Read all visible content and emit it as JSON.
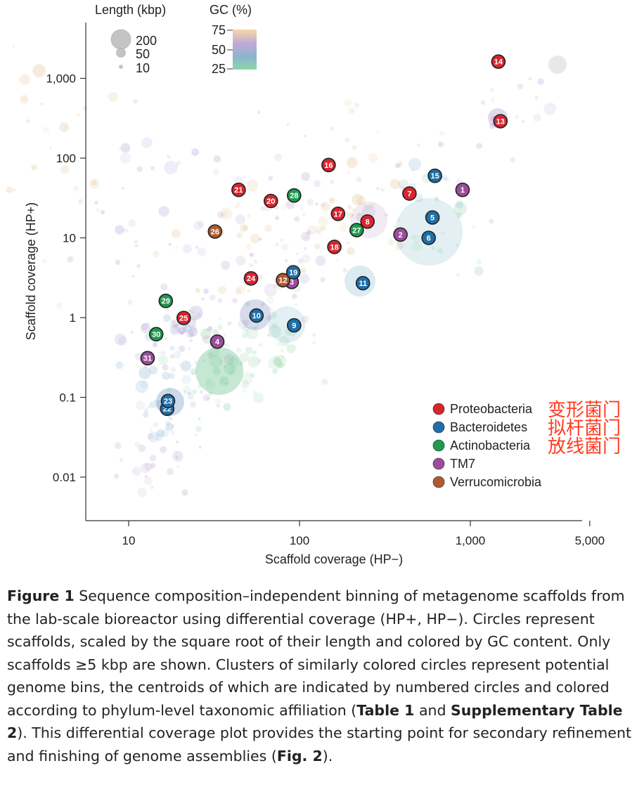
{
  "chart_data": {
    "type": "scatter",
    "xlabel": "Scaffold coverage (HP−)",
    "ylabel": "Scaffold coverage (HP+)",
    "x_scale": "log",
    "y_scale": "log",
    "xlim": [
      5,
      5000
    ],
    "ylim": [
      0.004,
      4000
    ],
    "x_ticks": [
      {
        "value": 10,
        "label": "10"
      },
      {
        "value": 100,
        "label": "100"
      },
      {
        "value": 1000,
        "label": "1,000"
      },
      {
        "value": 5000,
        "label": "5,000"
      }
    ],
    "y_ticks": [
      {
        "value": 0.01,
        "label": "0.01"
      },
      {
        "value": 0.1,
        "label": "0.1"
      },
      {
        "value": 1,
        "label": "1"
      },
      {
        "value": 10,
        "label": "10"
      },
      {
        "value": 100,
        "label": "100"
      },
      {
        "value": 1000,
        "label": "1,000"
      }
    ],
    "size_legend": {
      "title": "Length (kbp)",
      "entries": [
        {
          "value": 200,
          "label": "200"
        },
        {
          "value": 50,
          "label": "50"
        },
        {
          "value": 10,
          "label": "10"
        }
      ]
    },
    "gc_legend": {
      "title": "GC (%)",
      "ticks": [
        {
          "value": 75,
          "label": "75"
        },
        {
          "value": 50,
          "label": "50"
        },
        {
          "value": 25,
          "label": "25"
        }
      ],
      "colors": [
        "#f6d8a4",
        "#bfaad6",
        "#8ab5cf",
        "#8fd6a4"
      ]
    },
    "phyla": [
      {
        "key": "Proteobacteria",
        "label": "Proteobacteria",
        "color": "#d8262e",
        "note": "变形菌门"
      },
      {
        "key": "Bacteroidetes",
        "label": "Bacteroidetes",
        "color": "#1f6fa8",
        "note": "拟杆菌门"
      },
      {
        "key": "Actinobacteria",
        "label": "Actinobacteria",
        "color": "#1f9a4e",
        "note": "放线菌门"
      },
      {
        "key": "TM7",
        "label": "TM7",
        "color": "#9b4d9b",
        "note": ""
      },
      {
        "key": "Verrucomicrobia",
        "label": "Verrucomicrobia",
        "color": "#b05a2e",
        "note": ""
      }
    ],
    "centroids": [
      {
        "id": "1",
        "x": 900,
        "y": 40,
        "phylum": "TM7"
      },
      {
        "id": "2",
        "x": 390,
        "y": 11,
        "phylum": "TM7"
      },
      {
        "id": "3",
        "x": 90,
        "y": 2.8,
        "phylum": "TM7"
      },
      {
        "id": "4",
        "x": 33,
        "y": 0.5,
        "phylum": "TM7"
      },
      {
        "id": "5",
        "x": 600,
        "y": 18,
        "phylum": "Bacteroidetes"
      },
      {
        "id": "6",
        "x": 570,
        "y": 10,
        "phylum": "Bacteroidetes"
      },
      {
        "id": "7",
        "x": 440,
        "y": 36,
        "phylum": "Proteobacteria"
      },
      {
        "id": "8",
        "x": 250,
        "y": 16,
        "phylum": "Proteobacteria"
      },
      {
        "id": "9",
        "x": 93,
        "y": 0.8,
        "phylum": "Bacteroidetes"
      },
      {
        "id": "10",
        "x": 56,
        "y": 1.06,
        "phylum": "Bacteroidetes"
      },
      {
        "id": "11",
        "x": 235,
        "y": 2.7,
        "phylum": "Bacteroidetes"
      },
      {
        "id": "12",
        "x": 80,
        "y": 2.95,
        "phylum": "Verrucomicrobia"
      },
      {
        "id": "13",
        "x": 1500,
        "y": 290,
        "phylum": "Proteobacteria"
      },
      {
        "id": "14",
        "x": 1460,
        "y": 1620,
        "phylum": "Proteobacteria"
      },
      {
        "id": "15",
        "x": 620,
        "y": 60,
        "phylum": "Bacteroidetes"
      },
      {
        "id": "16",
        "x": 148,
        "y": 82,
        "phylum": "Proteobacteria"
      },
      {
        "id": "17",
        "x": 168,
        "y": 20,
        "phylum": "Proteobacteria"
      },
      {
        "id": "18",
        "x": 160,
        "y": 7.7,
        "phylum": "Proteobacteria"
      },
      {
        "id": "19",
        "x": 92,
        "y": 3.7,
        "phylum": "Bacteroidetes"
      },
      {
        "id": "20",
        "x": 68,
        "y": 29,
        "phylum": "Proteobacteria"
      },
      {
        "id": "21",
        "x": 44,
        "y": 40,
        "phylum": "Proteobacteria"
      },
      {
        "id": "22",
        "x": 16.8,
        "y": 0.072,
        "phylum": "Bacteroidetes"
      },
      {
        "id": "23",
        "x": 17,
        "y": 0.09,
        "phylum": "Bacteroidetes"
      },
      {
        "id": "24",
        "x": 52,
        "y": 3.1,
        "phylum": "Proteobacteria"
      },
      {
        "id": "25",
        "x": 21,
        "y": 0.99,
        "phylum": "Proteobacteria"
      },
      {
        "id": "26",
        "x": 32,
        "y": 12,
        "phylum": "Verrucomicrobia"
      },
      {
        "id": "27",
        "x": 216,
        "y": 12.5,
        "phylum": "Actinobacteria"
      },
      {
        "id": "28",
        "x": 93,
        "y": 34,
        "phylum": "Actinobacteria"
      },
      {
        "id": "29",
        "x": 16.5,
        "y": 1.62,
        "phylum": "Actinobacteria"
      },
      {
        "id": "30",
        "x": 14.5,
        "y": 0.62,
        "phylum": "Actinobacteria"
      },
      {
        "id": "31",
        "x": 12.9,
        "y": 0.31,
        "phylum": "TM7"
      }
    ]
  },
  "caption": {
    "label": "Figure 1",
    "text1": "  Sequence composition–independent binning of metagenome scaffolds from the lab-scale bioreactor using differential coverage (HP+, HP−). Circles represent scaffolds, scaled by the square root of their length and colored by GC content. Only scaffolds ≥5 kbp are shown. Clusters of similarly colored circles represent potential genome bins, the centroids of which are indicated by numbered circles and colored according to phylum-level taxonomic affiliation (",
    "ref1": "Table 1",
    "text2": " and ",
    "ref2": "Supplementary Table 2",
    "text3": "). This differential coverage plot provides the starting point for secondary refinement and finishing of genome assemblies (",
    "ref3": "Fig. 2",
    "text4": ")."
  }
}
